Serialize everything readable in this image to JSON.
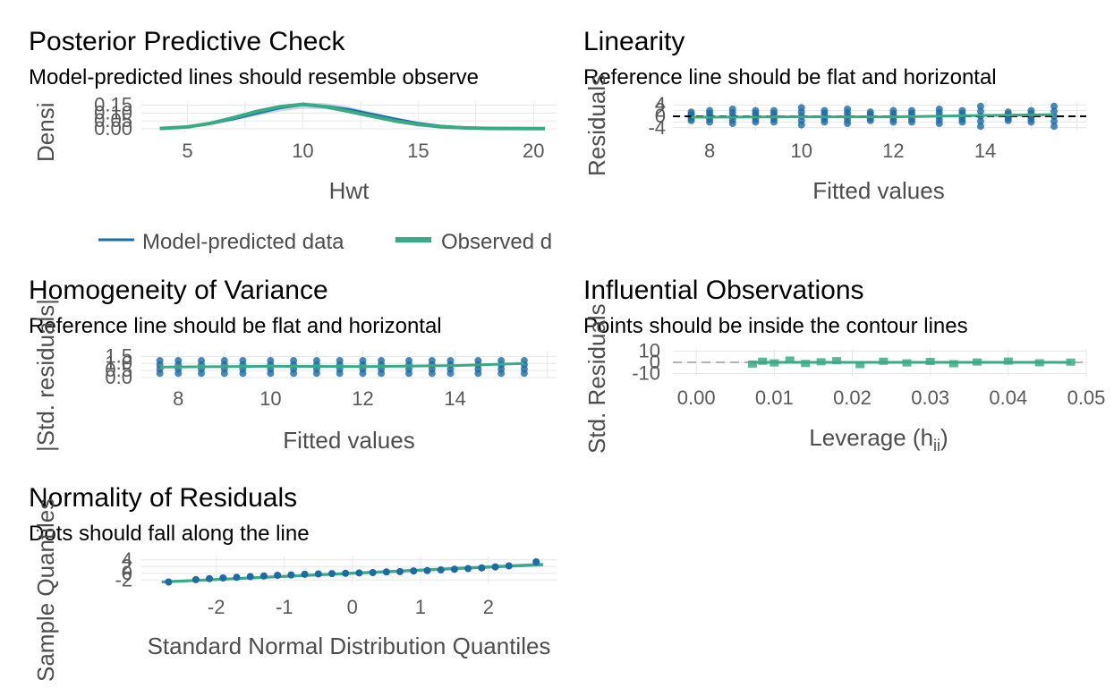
{
  "colors": {
    "model": "#1b6ba6",
    "observed": "#3aaa85",
    "reference": "#000000",
    "grid": "#e6e6e6",
    "contour": "#b3b3b3"
  },
  "chart_data": [
    {
      "id": "ppc",
      "type": "line",
      "title": "Posterior Predictive Check",
      "subtitle": "Model-predicted lines should resemble observe",
      "xlabel": "Hwt",
      "ylabel": "Densi",
      "xlim": [
        3,
        21
      ],
      "ylim": [
        0,
        0.17
      ],
      "xticks": [
        "5",
        "10",
        "15",
        "20"
      ],
      "yticks": [
        "0.00",
        "0.05",
        "0.10",
        "0.15"
      ],
      "legend": {
        "placement": "bottom",
        "items": [
          "Model-predicted data",
          "Observed d"
        ]
      },
      "series": [
        {
          "name": "Model-predicted data",
          "x": [
            3.8,
            5,
            6,
            7,
            8,
            9,
            10,
            11,
            12,
            13,
            14,
            15,
            16,
            17,
            18,
            19,
            20.5
          ],
          "y": [
            0.003,
            0.01,
            0.03,
            0.06,
            0.095,
            0.13,
            0.15,
            0.145,
            0.125,
            0.095,
            0.065,
            0.038,
            0.02,
            0.01,
            0.005,
            0.003,
            0.002
          ]
        },
        {
          "name": "Observed d",
          "x": [
            3.8,
            5,
            6,
            7,
            8,
            9,
            10,
            11,
            12,
            13,
            14,
            15,
            16,
            17,
            18,
            19,
            20.5
          ],
          "y": [
            0.002,
            0.012,
            0.035,
            0.07,
            0.11,
            0.14,
            0.155,
            0.14,
            0.11,
            0.08,
            0.05,
            0.028,
            0.013,
            0.006,
            0.003,
            0.002,
            0.001
          ]
        }
      ]
    },
    {
      "id": "linearity",
      "type": "scatter",
      "title": "Linearity",
      "subtitle": "Reference line should be flat and horizontal",
      "xlabel": "Fitted values",
      "ylabel": "Residuals",
      "xlim": [
        7.2,
        16.2
      ],
      "ylim": [
        -5,
        5
      ],
      "xticks": [
        "8",
        "10",
        "12",
        "14"
      ],
      "yticks": [
        "-4",
        "0",
        "2",
        "4"
      ],
      "fitted": [
        7.6,
        8.0,
        8.5,
        9.0,
        9.4,
        10.0,
        10.5,
        11.0,
        11.5,
        12.0,
        12.4,
        13.0,
        13.5,
        13.9,
        14.5,
        15.0,
        15.5
      ],
      "residuals_spread": [
        1.5,
        2.0,
        2.5,
        2.0,
        2.0,
        3.0,
        2.0,
        2.5,
        1.5,
        2.0,
        2.0,
        2.5,
        2.0,
        3.5,
        1.5,
        2.0,
        3.5
      ],
      "reference_y": 0,
      "smooth": {
        "x": [
          7.6,
          10,
          12,
          14,
          15.5
        ],
        "y": [
          -0.3,
          -0.2,
          -0.2,
          0.3,
          0.6
        ]
      }
    },
    {
      "id": "homogeneity",
      "type": "scatter",
      "title": "Homogeneity of Variance",
      "subtitle": "Reference line should be flat and horizontal",
      "xlabel": "Fitted values",
      "ylabel": "|Std. residuals|",
      "xlim": [
        7.2,
        16.2
      ],
      "ylim": [
        0,
        1.9
      ],
      "xticks": [
        "8",
        "10",
        "12",
        "14"
      ],
      "yticks": [
        "0.0",
        "0.5",
        "1.0",
        "1.5"
      ],
      "fitted": [
        7.6,
        8.0,
        8.5,
        9.0,
        9.4,
        10.0,
        10.5,
        11.0,
        11.5,
        12.0,
        12.4,
        13.0,
        13.5,
        13.9,
        14.5,
        15.0,
        15.5
      ],
      "smooth": {
        "x": [
          7.6,
          10,
          12,
          14,
          15.5
        ],
        "y": [
          0.75,
          0.8,
          0.78,
          0.85,
          1.0
        ]
      }
    },
    {
      "id": "influential",
      "type": "scatter",
      "title": "Influential Observations",
      "subtitle": "Points should be inside the contour lines",
      "xlabel": "Leverage (h",
      "xlabel_sub": "ii",
      "xlabel_end": ")",
      "ylabel": "Std. Residuals",
      "xlim": [
        -0.003,
        0.05
      ],
      "ylim": [
        -12,
        12
      ],
      "xticks": [
        "0.00",
        "0.01",
        "0.02",
        "0.03",
        "0.04",
        "0.05"
      ],
      "yticks": [
        "-10",
        "0",
        "10"
      ],
      "leverage": [
        0.0072,
        0.0085,
        0.01,
        0.012,
        0.014,
        0.016,
        0.018,
        0.021,
        0.024,
        0.027,
        0.03,
        0.033,
        0.036,
        0.04,
        0.044,
        0.048
      ],
      "residuals": [
        -1.5,
        1.0,
        -0.5,
        2.0,
        -1.0,
        0.5,
        1.5,
        -2.0,
        1.0,
        -0.5,
        0.8,
        -1.2,
        0.3,
        1.1,
        -0.4,
        0.2
      ]
    },
    {
      "id": "normality",
      "type": "scatter",
      "title": "Normality of Residuals",
      "subtitle": "Dots should fall along the line",
      "xlabel": "Standard Normal Distribution Quantiles",
      "ylabel": "Sample Quantiles",
      "xlim": [
        -3.1,
        3.0
      ],
      "ylim": [
        -3,
        5
      ],
      "xticks": [
        "-2",
        "-1",
        "0",
        "1",
        "2"
      ],
      "yticks": [
        "-2",
        "0",
        "2",
        "4"
      ],
      "points_x": [
        -2.7,
        -2.3,
        -2.1,
        -1.9,
        -1.7,
        -1.5,
        -1.3,
        -1.1,
        -0.9,
        -0.7,
        -0.5,
        -0.3,
        -0.1,
        0.1,
        0.3,
        0.5,
        0.7,
        0.9,
        1.1,
        1.3,
        1.5,
        1.7,
        1.9,
        2.1,
        2.3,
        2.7
      ],
      "points_y": [
        -2.6,
        -1.9,
        -1.6,
        -1.4,
        -1.2,
        -1.0,
        -0.8,
        -0.6,
        -0.5,
        -0.3,
        -0.2,
        -0.1,
        0.0,
        0.1,
        0.2,
        0.4,
        0.5,
        0.7,
        0.8,
        1.0,
        1.2,
        1.4,
        1.6,
        1.9,
        2.2,
        3.4
      ],
      "line": {
        "x": [
          -2.8,
          2.8
        ],
        "y": [
          -2.6,
          2.6
        ]
      }
    }
  ]
}
